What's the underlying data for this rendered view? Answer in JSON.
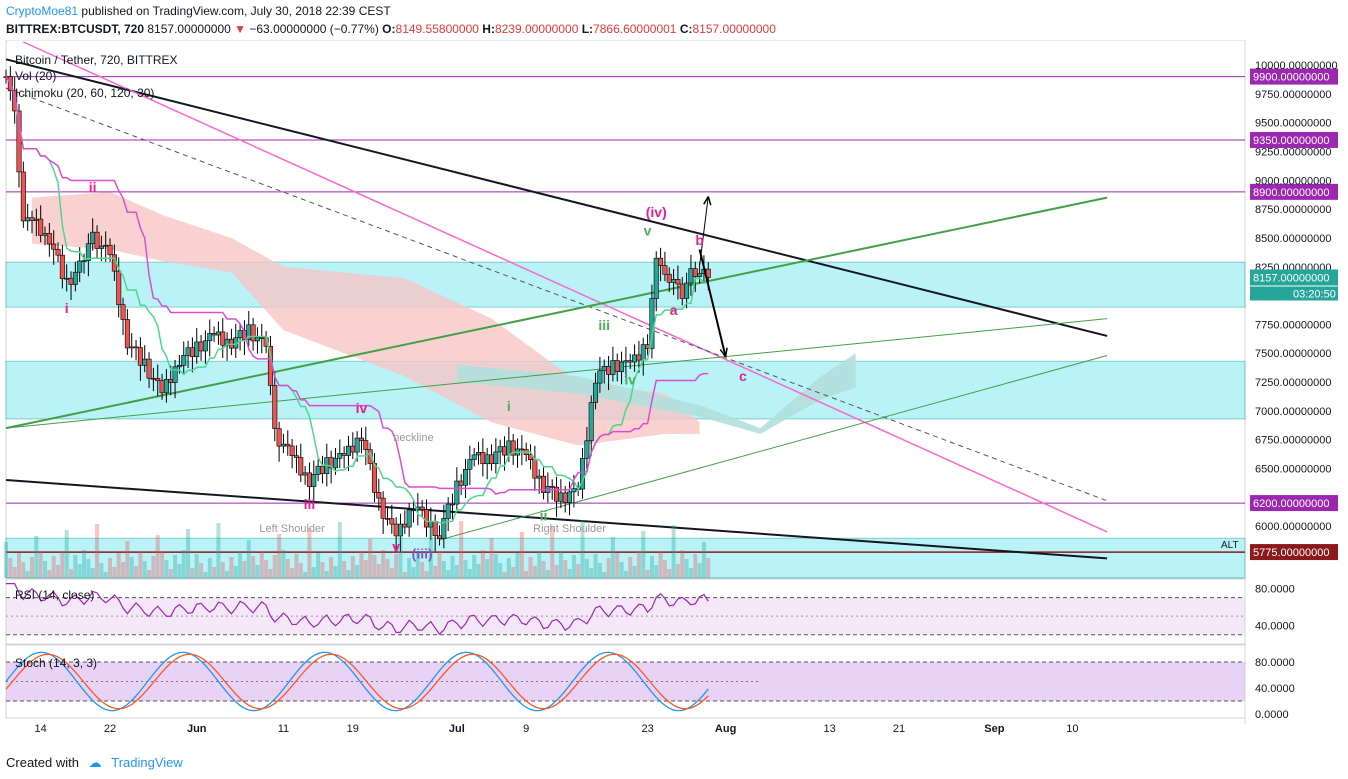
{
  "header": {
    "author": "CryptoMoe81",
    "published": "published on TradingView.com, July 30, 2018 22:39 CEST",
    "symbol": "BITTREX:BTCUSDT, 720",
    "last": "8157.00000000",
    "change_arrow": "▼",
    "change": "−63.00000000 (−0.77%)",
    "o_label": "O:",
    "o": "8149.55800000",
    "h_label": "H:",
    "h": "8239.00000000",
    "l_label": "L:",
    "l": "7866.60000001",
    "c_label": "C:",
    "c": "8157.00000000"
  },
  "legend": {
    "title": "Bitcoin / Tether, 720, BITTREX",
    "vol": "Vol (20)",
    "ichimoku": "Ichimoku (20, 60, 120, 30)"
  },
  "price_labels": {
    "current": "8157.00000000",
    "countdown": "03:20:50",
    "alt": "ALT"
  },
  "rsi_label": "RSI (14, close)",
  "stoch_label": "Stoch (14, 3, 3)",
  "colors": {
    "support_resistance": "#9c27b0",
    "zone_fill": "#7fe7f0",
    "pink_trend": "#ff66cc",
    "green_trend": "#43a047",
    "kijun": "#d94ed1",
    "tenkan": "#4cd88c",
    "candle_up": "#26a69a",
    "candle_down": "#ef5350",
    "cloud_bull": "#b2dfdb",
    "cloud_bear": "#f8c5c5",
    "stoch_k": "#2196f3",
    "stoch_d": "#ff5722",
    "rsi": "#9c27b0"
  },
  "footer": {
    "created_with": "Created with",
    "brand": "TradingView"
  },
  "chart_data": {
    "type": "candlestick",
    "title": "Bitcoin / Tether, 720, BITTREX",
    "timeframe": "12h",
    "x_ticks": [
      "14",
      "22",
      "Jun",
      "11",
      "19",
      "Jul",
      "9",
      "23",
      "Aug",
      "13",
      "21",
      "Sep",
      "10"
    ],
    "y_ticks": [
      "10000.00000000",
      "9750.00000000",
      "9500.00000000",
      "9250.00000000",
      "9000.00000000",
      "8750.00000000",
      "8500.00000000",
      "8250.00000000",
      "8000.00000000",
      "7750.00000000",
      "7500.00000000",
      "7250.00000000",
      "7000.00000000",
      "6750.00000000",
      "6500.00000000",
      "6250.00000000",
      "6000.00000000"
    ],
    "y_range": [
      5550,
      10200
    ],
    "horizontal_levels": [
      {
        "value": 9900,
        "label": "9900.00000000"
      },
      {
        "value": 9350,
        "label": "9350.00000000"
      },
      {
        "value": 8900,
        "label": "8900.00000000"
      },
      {
        "value": 6200,
        "label": "6200.00000000"
      },
      {
        "value": 5775,
        "label": "5775.00000000",
        "tag": "ALT"
      }
    ],
    "zones": [
      [
        7900,
        8290
      ],
      [
        6930,
        7430
      ],
      [
        5550,
        5895
      ]
    ],
    "last_price": 8157,
    "close_path": [
      [
        "May 10",
        9900
      ],
      [
        "May 11",
        9550
      ],
      [
        "May 12",
        8700
      ],
      [
        "May 13",
        8650
      ],
      [
        "May 15",
        8500
      ],
      [
        "May 17",
        8100
      ],
      [
        "May 19",
        8300
      ],
      [
        "May 20",
        8500
      ],
      [
        "May 22",
        8350
      ],
      [
        "May 24",
        7600
      ],
      [
        "May 26",
        7400
      ],
      [
        "May 28",
        7150
      ],
      [
        "May 30",
        7450
      ],
      [
        "Jun 1",
        7550
      ],
      [
        "Jun 3",
        7650
      ],
      [
        "Jun 5",
        7600
      ],
      [
        "Jun 7",
        7700
      ],
      [
        "Jun 9",
        7550
      ],
      [
        "Jun 10",
        6800
      ],
      [
        "Jun 12",
        6600
      ],
      [
        "Jun 14",
        6400
      ],
      [
        "Jun 16",
        6550
      ],
      [
        "Jun 18",
        6600
      ],
      [
        "Jun 20",
        6800
      ],
      [
        "Jun 22",
        6200
      ],
      [
        "Jun 24",
        5900
      ],
      [
        "Jun 26",
        6200
      ],
      [
        "Jun 28",
        6000
      ],
      [
        "Jun 29",
        5950
      ],
      [
        "Jul 1",
        6350
      ],
      [
        "Jul 3",
        6600
      ],
      [
        "Jul 5",
        6600
      ],
      [
        "Jul 7",
        6700
      ],
      [
        "Jul 9",
        6600
      ],
      [
        "Jul 11",
        6350
      ],
      [
        "Jul 13",
        6250
      ],
      [
        "Jul 15",
        6300
      ],
      [
        "Jul 17",
        7300
      ],
      [
        "Jul 19",
        7400
      ],
      [
        "Jul 21",
        7400
      ],
      [
        "Jul 23",
        7600
      ],
      [
        "Jul 24",
        8300
      ],
      [
        "Jul 25",
        8150
      ],
      [
        "Jul 26",
        8200
      ],
      [
        "Jul 27",
        7950
      ],
      [
        "Jul 28",
        8200
      ],
      [
        "Jul 29",
        8250
      ],
      [
        "Jul 30",
        8157
      ]
    ],
    "wave_labels": [
      {
        "label": "ii",
        "date": "May 20",
        "price": 8900
      },
      {
        "label": "i",
        "date": "May 17",
        "price": 7850
      },
      {
        "label": "iv",
        "date": "Jun 20",
        "price": 6980
      },
      {
        "label": "iii",
        "date": "Jun 14",
        "price": 6150
      },
      {
        "label": "v",
        "date": "Jun 24",
        "price": 5780
      },
      {
        "label": "(iii)",
        "date": "Jun 27",
        "price": 5720
      },
      {
        "label": "i",
        "date": "Jul 7",
        "price": 7000
      },
      {
        "label": "ii",
        "date": "Jul 11",
        "price": 6050
      },
      {
        "label": "iii",
        "date": "Jul 18",
        "price": 7700
      },
      {
        "label": "iv",
        "date": "Jul 21",
        "price": 7230
      },
      {
        "label": "v",
        "date": "Jul 23",
        "price": 8520
      },
      {
        "label": "(iv)",
        "date": "Jul 24",
        "price": 8680
      },
      {
        "label": "a",
        "date": "Jul 26",
        "price": 7830
      },
      {
        "label": "b",
        "date": "Jul 29",
        "price": 8440
      },
      {
        "label": "c",
        "date": "Aug 3",
        "price": 7260
      }
    ],
    "pattern_labels": [
      "Left Shoulder",
      "neckline",
      "Right Shoulder"
    ],
    "rsi": {
      "label": "RSI (14, close)",
      "levels": [
        70,
        30
      ],
      "ticks": [
        "80.0000",
        "40.0000"
      ]
    },
    "stoch": {
      "label": "Stoch (14, 3, 3)",
      "levels": [
        80,
        20
      ],
      "ticks": [
        "80.0000",
        "40.0000",
        "0.0000"
      ]
    }
  }
}
